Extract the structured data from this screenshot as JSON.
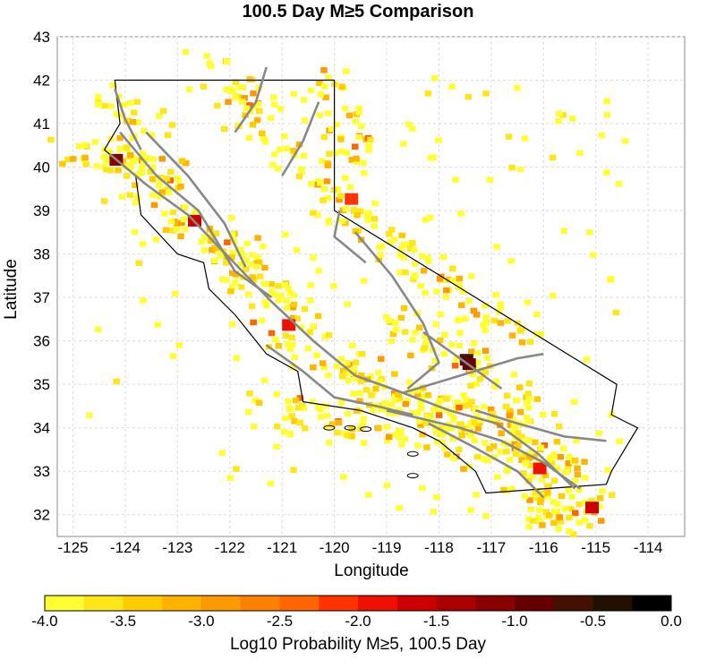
{
  "title": "100.5 Day M≥5 Comparison",
  "map": {
    "xlabel": "Longitude",
    "ylabel": "Latitude",
    "xlim": [
      -125.3,
      -113.3
    ],
    "ylim": [
      31.5,
      43.0
    ],
    "x_ticks": [
      "-125",
      "-124",
      "-123",
      "-122",
      "-121",
      "-120",
      "-119",
      "-118",
      "-117",
      "-116",
      "-115",
      "-114"
    ],
    "y_ticks": [
      "32",
      "33",
      "34",
      "35",
      "36",
      "37",
      "38",
      "39",
      "40",
      "41",
      "42",
      "43"
    ],
    "grid": true,
    "fault_color": "#888888",
    "border_color": "#000000"
  },
  "colorbar": {
    "label": "Log10 Probability M≥5, 100.5 Day",
    "min": -4.0,
    "max": 0.0,
    "tick_labels": [
      "-4.0",
      "-3.5",
      "-3.0",
      "-2.5",
      "-2.0",
      "-1.5",
      "-1.0",
      "-0.5",
      "0.0"
    ],
    "colors": [
      "#ffff33",
      "#ffe619",
      "#ffcc00",
      "#ffb300",
      "#ff9900",
      "#ff8000",
      "#ff6600",
      "#ff3300",
      "#ee1100",
      "#cc0000",
      "#aa0000",
      "#880000",
      "#660000",
      "#441100",
      "#221100",
      "#000000"
    ]
  }
}
